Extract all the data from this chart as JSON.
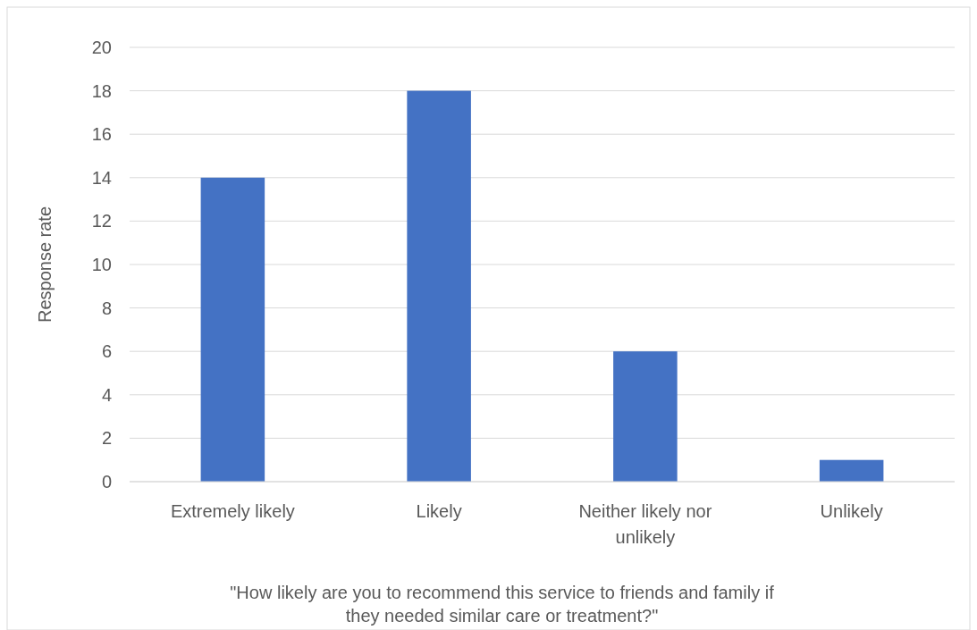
{
  "chart_data": {
    "type": "bar",
    "xlabel": "\"How likely are you to recommend this service to friends and family if they needed similar care or treatment?\"",
    "ylabel": "Response rate",
    "categories": [
      "Extremely likely",
      "Likely",
      "Neither likely nor unlikely",
      "Unlikely"
    ],
    "values": [
      14,
      18,
      6,
      1
    ],
    "color": "#4472c4",
    "ylim": [
      0,
      20
    ],
    "yticks": [
      0,
      2,
      4,
      6,
      8,
      10,
      12,
      14,
      16,
      18,
      20
    ],
    "grid": "y"
  }
}
